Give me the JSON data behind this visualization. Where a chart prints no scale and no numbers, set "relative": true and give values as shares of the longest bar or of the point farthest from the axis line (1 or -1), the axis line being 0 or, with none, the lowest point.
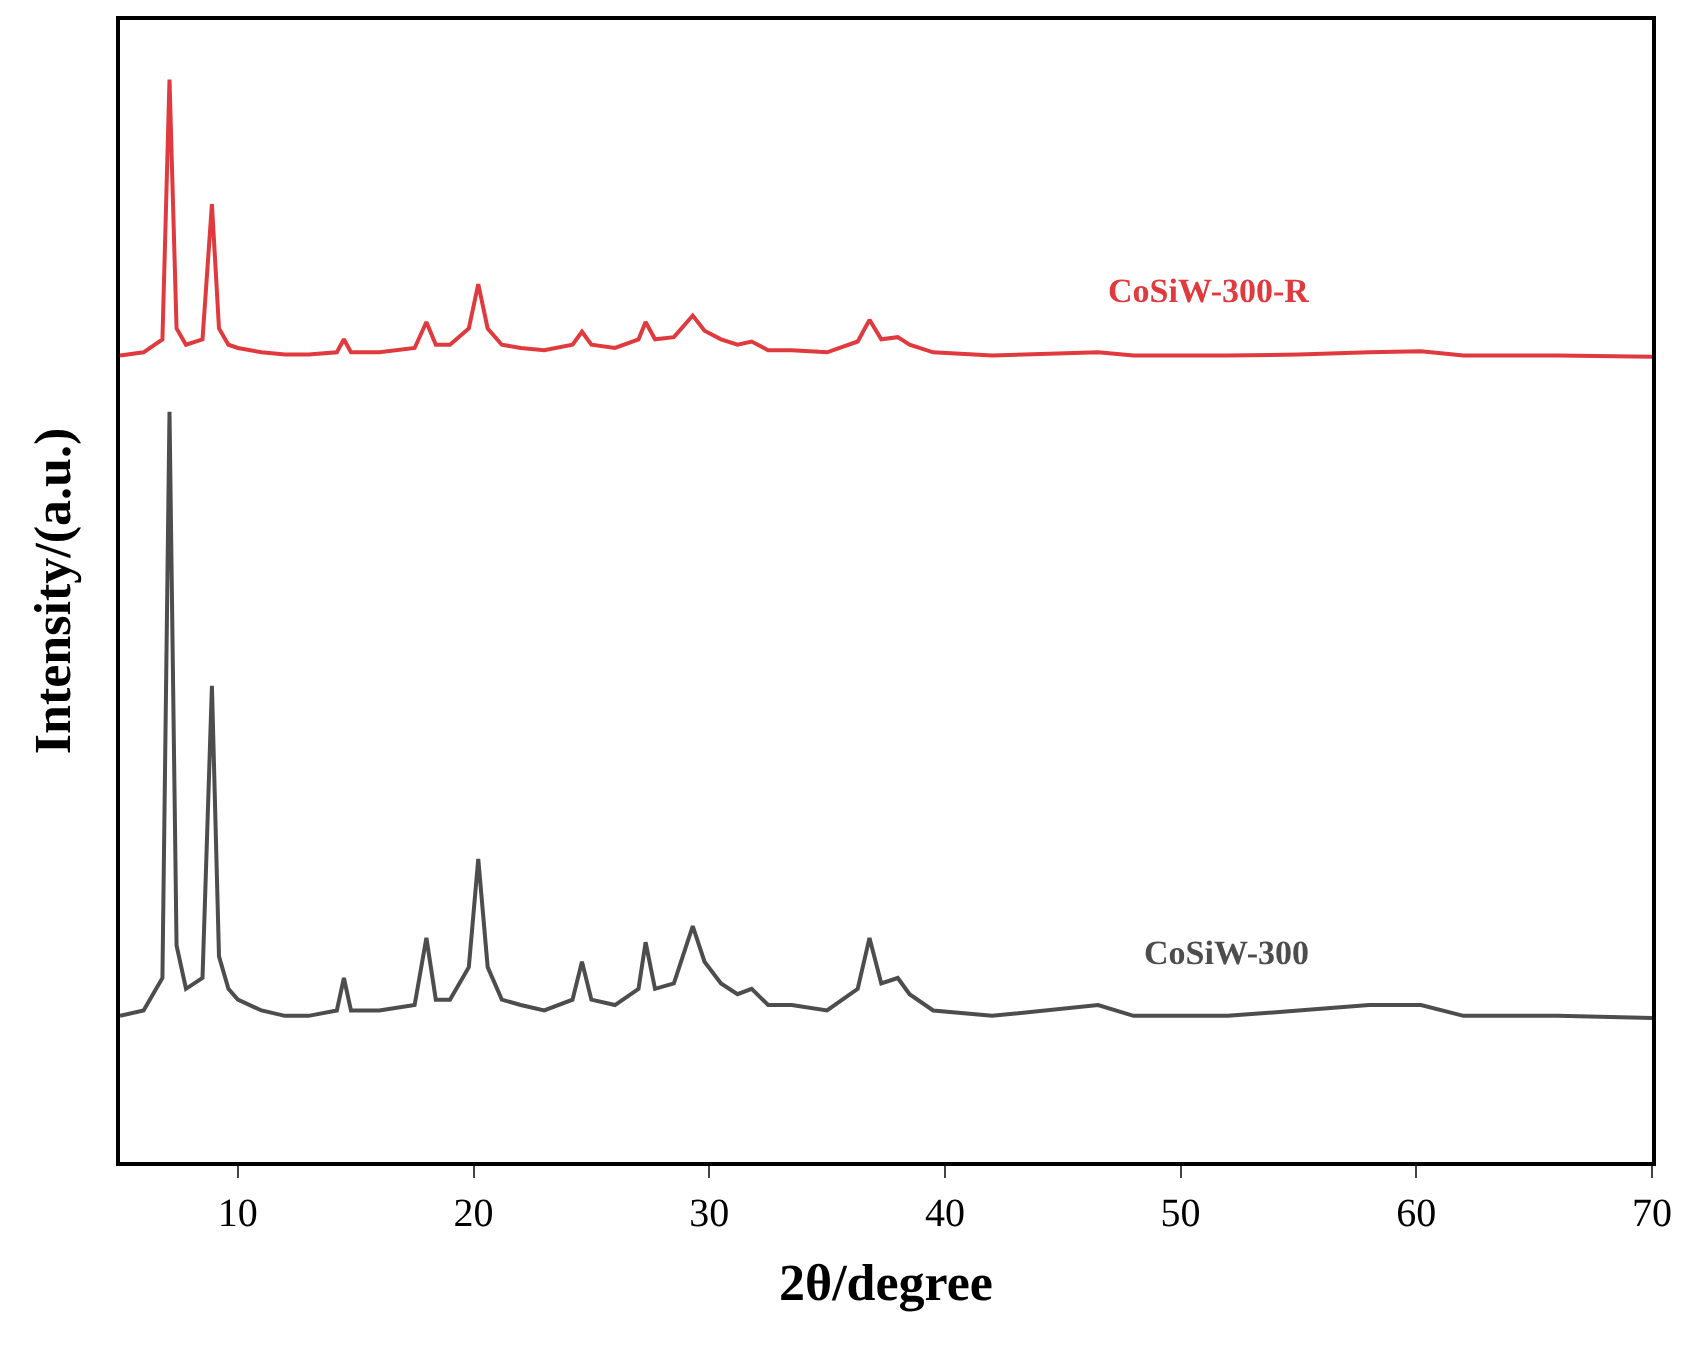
{
  "chart_data": {
    "type": "line",
    "relative": true,
    "xlabel": "2θ/degree",
    "ylabel": "Intensity/(a.u.)",
    "xlim": [
      5,
      70
    ],
    "xticks": [
      10,
      20,
      30,
      40,
      50,
      60,
      70
    ],
    "legend": false,
    "marker": "none",
    "line_style": "solid",
    "series": [
      {
        "name": "CoSiW-300-R",
        "color": "#e03a3e",
        "x": [
          5,
          6,
          6.8,
          7.1,
          7.4,
          7.8,
          8.5,
          8.9,
          9.2,
          9.6,
          10,
          11,
          12,
          13,
          14.2,
          14.5,
          14.8,
          16,
          17.5,
          18,
          18.4,
          19,
          19.8,
          20.2,
          20.6,
          21.2,
          22,
          23,
          24.2,
          24.6,
          25,
          26,
          27,
          27.3,
          27.7,
          28.5,
          29.3,
          29.8,
          30.5,
          31.2,
          31.8,
          32.5,
          33.5,
          35,
          36.3,
          36.8,
          37.3,
          38,
          38.5,
          39.5,
          42,
          46.5,
          48,
          52,
          55,
          58,
          60.2,
          62,
          66,
          70
        ],
        "values": [
          0.745,
          0.748,
          0.76,
          1.0,
          0.77,
          0.755,
          0.76,
          0.885,
          0.77,
          0.755,
          0.752,
          0.748,
          0.746,
          0.746,
          0.748,
          0.76,
          0.748,
          0.748,
          0.752,
          0.776,
          0.755,
          0.755,
          0.77,
          0.811,
          0.77,
          0.755,
          0.752,
          0.75,
          0.755,
          0.767,
          0.755,
          0.752,
          0.76,
          0.776,
          0.76,
          0.762,
          0.782,
          0.768,
          0.76,
          0.755,
          0.758,
          0.75,
          0.75,
          0.748,
          0.758,
          0.778,
          0.76,
          0.762,
          0.755,
          0.748,
          0.745,
          0.748,
          0.745,
          0.745,
          0.746,
          0.748,
          0.749,
          0.745,
          0.745,
          0.744
        ]
      },
      {
        "name": "CoSiW-300",
        "color": "#4d4d4d",
        "x": [
          5,
          6,
          6.8,
          7.1,
          7.4,
          7.8,
          8.5,
          8.9,
          9.2,
          9.6,
          10,
          11,
          12,
          13,
          14.2,
          14.5,
          14.8,
          16,
          17.5,
          18,
          18.4,
          19,
          19.8,
          20.2,
          20.6,
          21.2,
          22,
          23,
          24.2,
          24.6,
          25,
          26,
          27,
          27.3,
          27.7,
          28.5,
          29.3,
          29.8,
          30.5,
          31.2,
          31.8,
          32.5,
          33.5,
          35,
          36.3,
          36.8,
          37.3,
          38,
          38.5,
          39.5,
          42,
          46.5,
          48,
          52,
          55,
          58,
          60.2,
          62,
          66,
          70
        ],
        "values": [
          0.135,
          0.14,
          0.17,
          0.693,
          0.2,
          0.16,
          0.17,
          0.44,
          0.19,
          0.16,
          0.15,
          0.14,
          0.135,
          0.135,
          0.14,
          0.17,
          0.14,
          0.14,
          0.145,
          0.207,
          0.15,
          0.15,
          0.18,
          0.28,
          0.18,
          0.15,
          0.145,
          0.14,
          0.15,
          0.185,
          0.15,
          0.145,
          0.16,
          0.203,
          0.16,
          0.165,
          0.218,
          0.185,
          0.165,
          0.155,
          0.16,
          0.145,
          0.145,
          0.14,
          0.16,
          0.207,
          0.165,
          0.17,
          0.155,
          0.14,
          0.135,
          0.145,
          0.135,
          0.135,
          0.14,
          0.145,
          0.145,
          0.135,
          0.135,
          0.133
        ]
      }
    ]
  }
}
